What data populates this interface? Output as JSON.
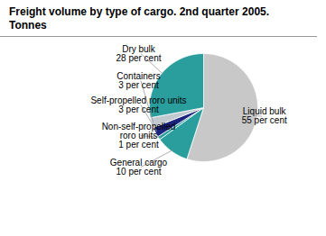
{
  "chart_data": {
    "type": "pie",
    "title": "Freight volume by type of cargo. 2nd quarter 2005.",
    "subtitle": "Tonnes",
    "categories": [
      "Liquid bulk",
      "General cargo",
      "Non-self-propelled\nroro units",
      "Self-propelled roro units",
      "Containers",
      "Dry bulk"
    ],
    "values": [
      55,
      10,
      1,
      3,
      3,
      28
    ],
    "value_labels": [
      "55 per cent",
      "10 per cent",
      "1 per cent",
      "3 per cent",
      "3 per cent",
      "28 per cent"
    ],
    "data_labels": true,
    "colors": [
      "#c8c8c8",
      "#2a9d9d",
      "#2a9d9d",
      "#1a237e",
      "#c0c8d0",
      "#2a9d9d"
    ]
  }
}
